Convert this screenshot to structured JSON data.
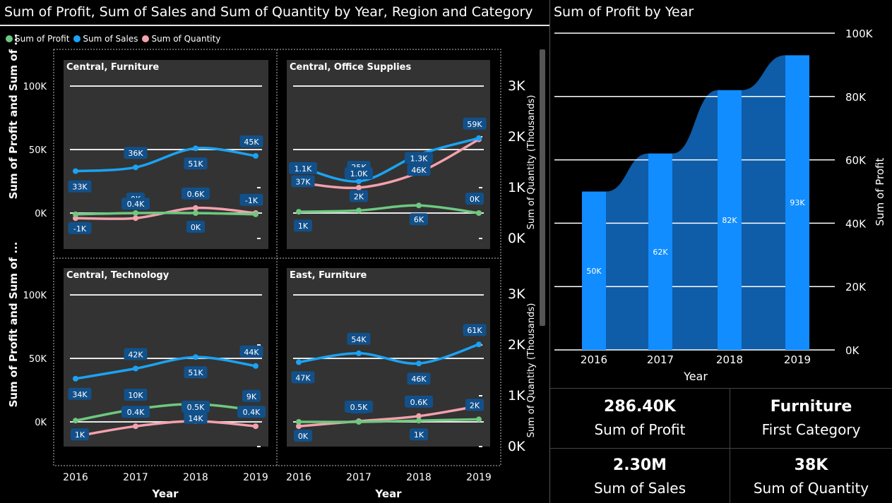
{
  "left": {
    "title": "Sum of Profit, Sum of Sales and Sum of Quantity by Year, Region and Category",
    "legend": [
      {
        "label": "Sum of Profit",
        "color": "#6dc97f"
      },
      {
        "label": "Sum of Sales",
        "color": "#1aa3f4"
      },
      {
        "label": "Sum of Quantity",
        "color": "#f4a1ad"
      }
    ],
    "y_left_title": "Sum of Profit and Sum of ...",
    "y_right_title": "Sum of Quantity (Thousands)",
    "x_title": "Year",
    "y_left_ticks": [
      "100K",
      "50K",
      "0K"
    ],
    "y_right_ticks": [
      "3K",
      "2K",
      "1K",
      "0K"
    ],
    "x_ticks": [
      "2016",
      "2017",
      "2018",
      "2019"
    ]
  },
  "chart_data": [
    {
      "type": "line",
      "title": "Central, Furniture",
      "x": [
        "2016",
        "2017",
        "2018",
        "2019"
      ],
      "series": [
        {
          "name": "Sum of Sales",
          "values": [
            33000,
            36000,
            51000,
            45000
          ],
          "labels": [
            "33K",
            "36K",
            "51K",
            "45K"
          ]
        },
        {
          "name": "Sum of Profit",
          "values": [
            -1000,
            0,
            0,
            -1000
          ],
          "labels": [
            "-1K",
            "0K",
            "0K",
            "-1K"
          ]
        },
        {
          "name": "Sum of Quantity",
          "values": [
            400,
            400,
            600,
            500
          ],
          "labels": [
            "",
            "0.4K",
            "0.6K",
            ""
          ]
        }
      ]
    },
    {
      "type": "line",
      "title": "Central, Office Supplies",
      "x": [
        "2016",
        "2017",
        "2018",
        "2019"
      ],
      "series": [
        {
          "name": "Sum of Sales",
          "values": [
            37000,
            25000,
            46000,
            59000
          ],
          "labels": [
            "37K",
            "25K",
            "46K",
            "59K"
          ]
        },
        {
          "name": "Sum of Profit",
          "values": [
            1000,
            2000,
            6000,
            0
          ],
          "labels": [
            "1K",
            "2K",
            "6K",
            "0K"
          ]
        },
        {
          "name": "Sum of Quantity",
          "values": [
            1100,
            1000,
            1300,
            1950
          ],
          "labels": [
            "1.1K",
            "1.0K",
            "1.3K",
            ""
          ]
        }
      ]
    },
    {
      "type": "line",
      "title": "Central, Technology",
      "x": [
        "2016",
        "2017",
        "2018",
        "2019"
      ],
      "series": [
        {
          "name": "Sum of Sales",
          "values": [
            34000,
            42000,
            51000,
            44000
          ],
          "labels": [
            "34K",
            "42K",
            "51K",
            "44K"
          ]
        },
        {
          "name": "Sum of Profit",
          "values": [
            1000,
            10000,
            14000,
            9000
          ],
          "labels": [
            "1K",
            "10K",
            "14K",
            "9K"
          ]
        },
        {
          "name": "Sum of Quantity",
          "values": [
            200,
            400,
            500,
            400
          ],
          "labels": [
            "",
            "0.4K",
            "0.5K",
            "0.4K"
          ]
        }
      ]
    },
    {
      "type": "line",
      "title": "East, Furniture",
      "x": [
        "2016",
        "2017",
        "2018",
        "2019"
      ],
      "series": [
        {
          "name": "Sum of Sales",
          "values": [
            47000,
            54000,
            46000,
            61000
          ],
          "labels": [
            "47K",
            "54K",
            "46K",
            "61K"
          ]
        },
        {
          "name": "Sum of Profit",
          "values": [
            0,
            0,
            1000,
            2000
          ],
          "labels": [
            "0K",
            "0K",
            "1K",
            "2K"
          ]
        },
        {
          "name": "Sum of Quantity",
          "values": [
            400,
            500,
            600,
            800
          ],
          "labels": [
            "",
            "0.5K",
            "0.6K",
            ""
          ]
        }
      ]
    },
    {
      "type": "bar",
      "title": "Sum of Profit by Year",
      "categories": [
        "2016",
        "2017",
        "2018",
        "2019"
      ],
      "values": [
        50000,
        62000,
        82000,
        93000
      ],
      "labels": [
        "50K",
        "62K",
        "82K",
        "93K"
      ],
      "xlabel": "Year",
      "ylabel": "Sum of Profit",
      "ylim": [
        0,
        100000
      ],
      "y_ticks": [
        "100K",
        "80K",
        "60K",
        "40K",
        "20K",
        "0K"
      ]
    }
  ],
  "kpis": [
    {
      "value": "286.40K",
      "label": "Sum of Profit"
    },
    {
      "value": "Furniture",
      "label": "First Category"
    },
    {
      "value": "2.30M",
      "label": "Sum of Sales"
    },
    {
      "value": "38K",
      "label": "Sum of Quantity"
    }
  ],
  "colors": {
    "profit": "#6dc97f",
    "sales": "#1aa3f4",
    "quantity": "#f4a1ad",
    "panel_bg": "#333333",
    "bar": "#118dff",
    "bar_area": "#0f5ca8",
    "label_bg": "#12508a"
  }
}
